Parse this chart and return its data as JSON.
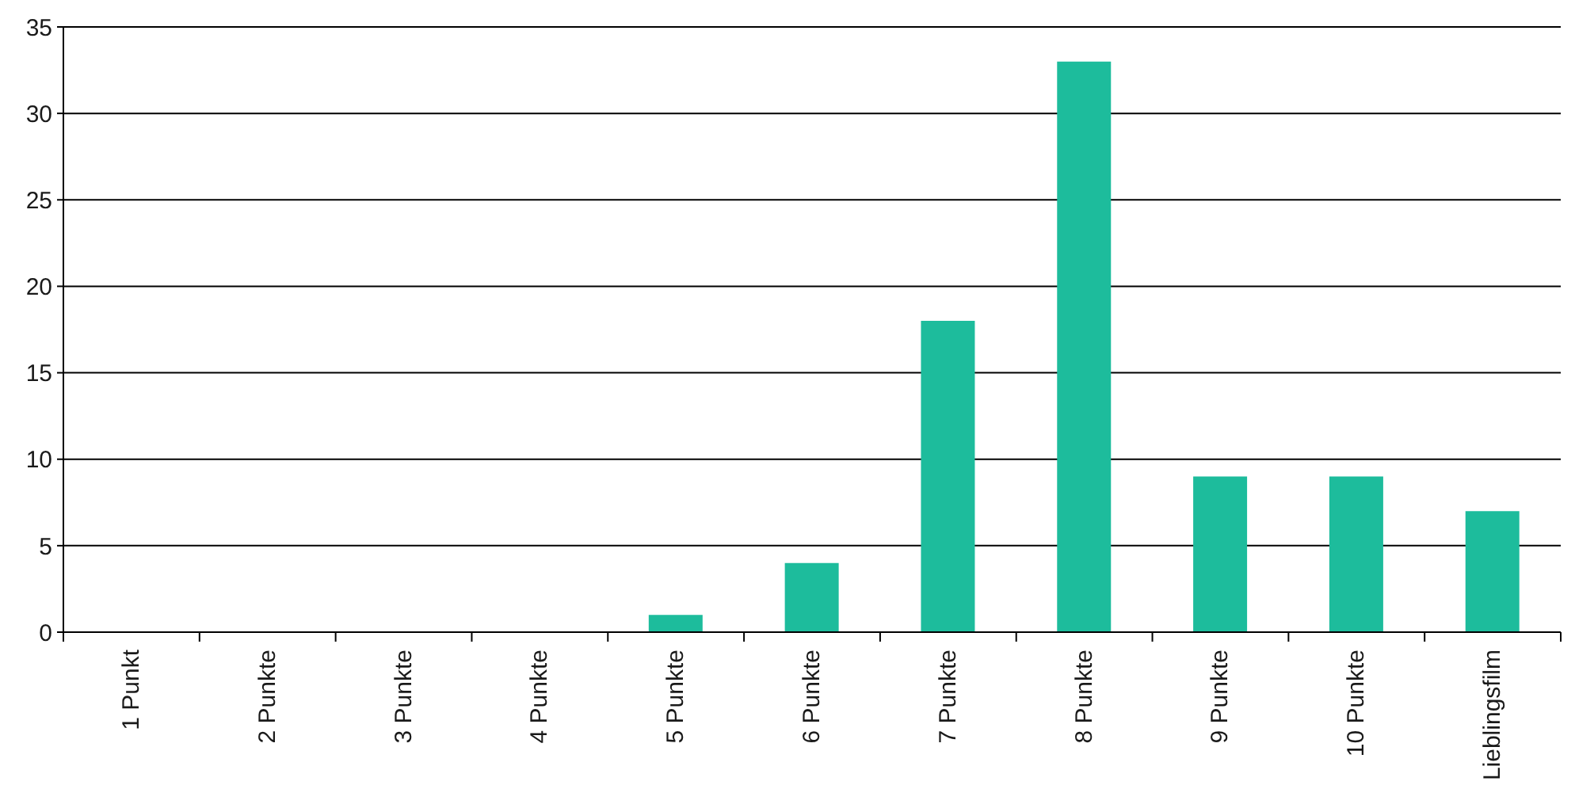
{
  "chart_data": {
    "type": "bar",
    "categories": [
      "1 Punkt",
      "2 Punkte",
      "3 Punkte",
      "4 Punkte",
      "5 Punkte",
      "6 Punkte",
      "7 Punkte",
      "8 Punkte",
      "9 Punkte",
      "10 Punkte",
      "Lieblingsfilm"
    ],
    "values": [
      0,
      0,
      0,
      0,
      1,
      4,
      18,
      33,
      9,
      9,
      7
    ],
    "color": "#1dbc9c",
    "ylim": [
      0,
      35
    ],
    "yticks": [
      0,
      5,
      10,
      15,
      20,
      25,
      30,
      35
    ],
    "grid": "y"
  }
}
